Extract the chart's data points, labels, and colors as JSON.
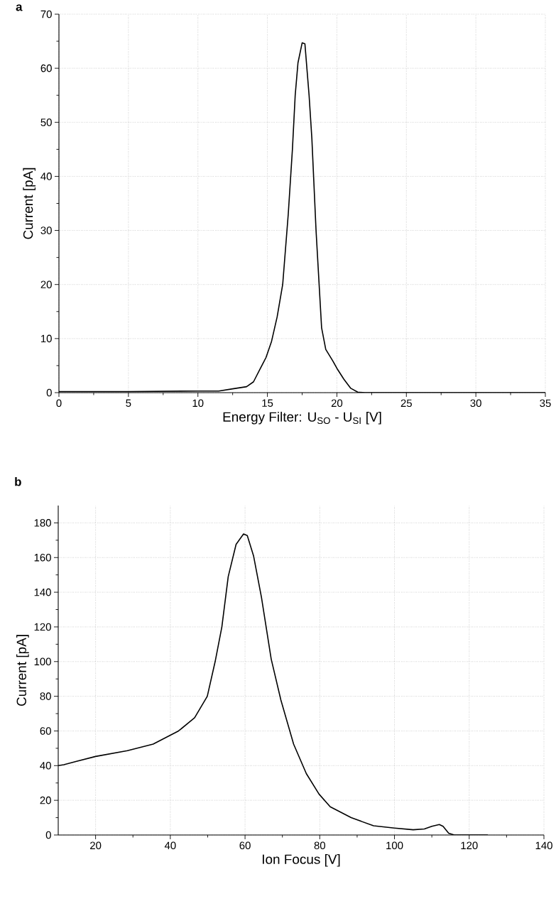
{
  "chart_data": [
    {
      "type": "line",
      "title": "a",
      "xlabel": "Energy Filter: U$_{SO}$ - U$_{SI}$ [V]",
      "ylabel": "Current [pA]",
      "xlim": [
        0,
        35
      ],
      "ylim": [
        0,
        70
      ],
      "xticks": [
        0,
        5,
        10,
        15,
        20,
        25,
        30,
        35
      ],
      "yticks": [
        0,
        10,
        20,
        30,
        40,
        50,
        60,
        70
      ],
      "grid": true,
      "x": [
        0,
        5,
        10,
        11.5,
        12.5,
        13.5,
        14,
        14.5,
        14.9,
        15.3,
        15.7,
        16.1,
        16.5,
        16.8,
        17,
        17.2,
        17.5,
        17.7,
        18,
        18.2,
        18.5,
        18.9,
        19.2,
        19.7,
        20,
        20.5,
        21,
        21.5,
        22,
        25,
        35
      ],
      "series": [
        {
          "color": "#000000",
          "values": [
            0.2,
            0.2,
            0.3,
            0.3,
            0.7,
            1.1,
            2,
            4.5,
            6.5,
            9.5,
            14,
            20,
            33,
            45,
            55,
            61,
            64.7,
            64.5,
            55,
            47,
            30,
            12,
            8,
            5.9,
            4.5,
            2.5,
            0.8,
            0.1,
            0,
            0,
            0
          ]
        }
      ]
    },
    {
      "type": "line",
      "title": "b",
      "xlabel": "Ion Focus [V]",
      "ylabel": "Current [pA]",
      "xlim": [
        10,
        140
      ],
      "ylim": [
        0,
        190
      ],
      "xticks": [
        20,
        40,
        60,
        80,
        100,
        120,
        140
      ],
      "yticks": [
        0,
        20,
        40,
        60,
        80,
        100,
        120,
        140,
        160,
        180
      ],
      "grid": true,
      "x": [
        10,
        11.5,
        14.9,
        20,
        28.5,
        35.4,
        42.2,
        46.5,
        49.9,
        52,
        53.8,
        55.5,
        57.6,
        59.6,
        60.6,
        62.3,
        64.4,
        67,
        69.6,
        73,
        76.4,
        79.8,
        82.8,
        88.4,
        94.4,
        100,
        105,
        108,
        110,
        112,
        113,
        114.5,
        116,
        125
      ],
      "series": [
        {
          "color": "#000000",
          "values": [
            40,
            40.5,
            42.5,
            45.3,
            48.6,
            52.4,
            60,
            67.6,
            80,
            100,
            120,
            149,
            167.6,
            173.6,
            172.7,
            160.8,
            137,
            101.5,
            77.8,
            52.4,
            35.4,
            23.6,
            16.3,
            10,
            5.3,
            4,
            3,
            3.5,
            5,
            6,
            5,
            1,
            0,
            0
          ]
        }
      ]
    }
  ]
}
